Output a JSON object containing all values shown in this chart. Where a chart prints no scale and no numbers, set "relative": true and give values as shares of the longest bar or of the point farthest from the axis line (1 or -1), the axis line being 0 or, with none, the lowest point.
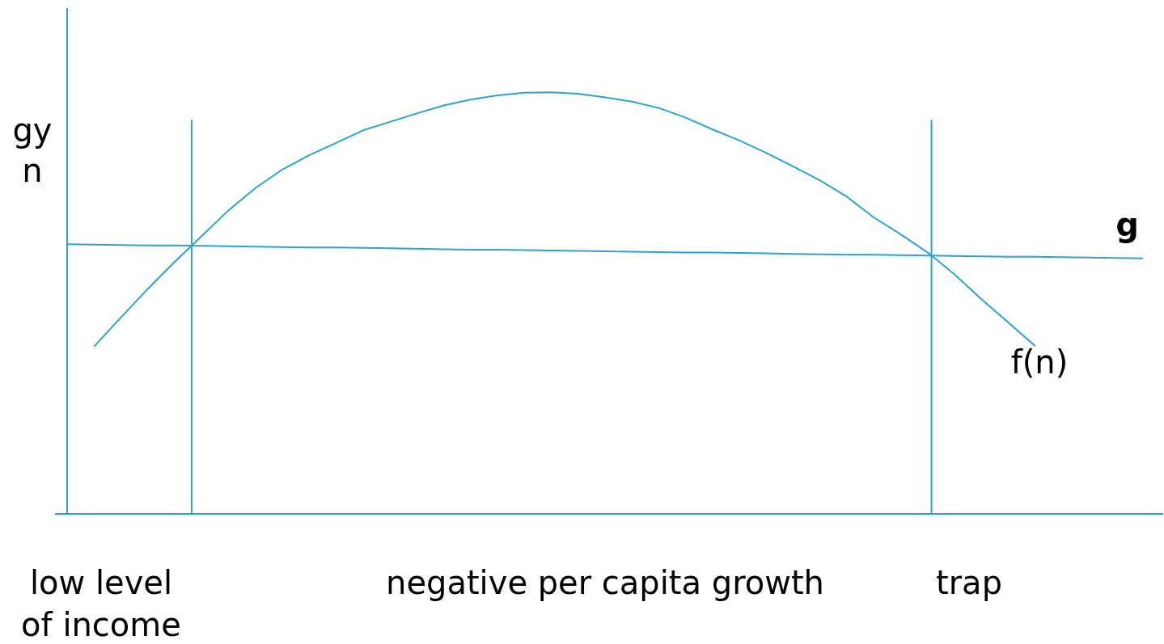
{
  "chart_data": {
    "type": "line",
    "relative": true,
    "ylabel": "gy\nn",
    "legend": false,
    "grid": false,
    "marker": "none",
    "line_style": "solid",
    "categories": [
      null,
      null,
      null,
      null,
      null,
      null,
      null,
      null,
      null,
      null,
      null,
      null,
      null,
      null,
      null,
      null,
      null,
      null,
      null,
      null,
      null,
      null,
      null,
      null,
      null,
      null,
      null,
      null,
      null,
      null,
      null,
      null,
      null,
      null,
      null,
      null,
      null,
      null,
      null,
      null,
      null
    ],
    "series": [
      {
        "name": "f(n)",
        "color": "#2ea3c3",
        "values": [
          null,
          0.397,
          0.466,
          0.534,
          0.598,
          0.659,
          0.72,
          0.773,
          0.817,
          0.851,
          0.88,
          0.91,
          0.93,
          0.95,
          0.969,
          0.983,
          0.993,
          0.999,
          1.0,
          0.997,
          0.988,
          0.978,
          0.963,
          0.94,
          0.912,
          0.886,
          0.856,
          0.824,
          0.791,
          0.752,
          0.703,
          0.663,
          0.62,
          0.568,
          0.509,
          0.454,
          0.398,
          null,
          null,
          null,
          null
        ]
      },
      {
        "name": "g",
        "color": "#2ea3c3",
        "values": [
          0.64,
          0.639,
          0.638,
          0.637,
          0.637,
          0.636,
          0.635,
          0.634,
          0.633,
          0.632,
          0.632,
          0.631,
          0.63,
          0.629,
          0.628,
          0.627,
          0.627,
          0.626,
          0.625,
          0.624,
          0.623,
          0.622,
          0.621,
          0.62,
          0.62,
          0.619,
          0.618,
          0.617,
          0.616,
          0.615,
          0.615,
          0.614,
          0.613,
          0.612,
          0.611,
          0.61,
          0.61,
          0.609,
          0.608,
          0.607,
          0.606
        ]
      }
    ],
    "annotations": [
      "low level\nof income",
      "negative per capita growth",
      "trap"
    ]
  }
}
